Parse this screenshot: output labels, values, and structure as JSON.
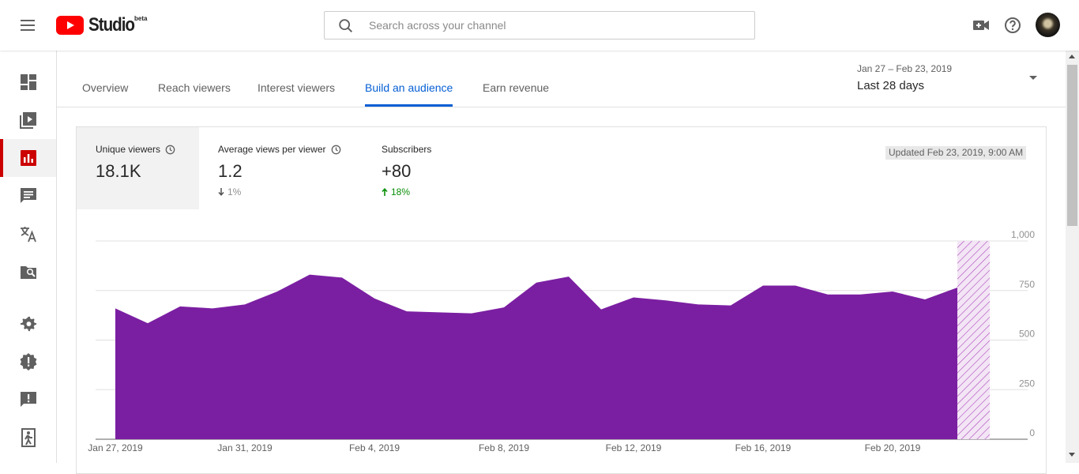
{
  "app": {
    "logo_text": "Studio",
    "beta_label": "beta",
    "brand_color": "#ff0000"
  },
  "search": {
    "placeholder": "Search across your channel",
    "value": ""
  },
  "header_icons": [
    "create-video-icon",
    "help-icon",
    "avatar"
  ],
  "sidebar": {
    "items": [
      {
        "name": "dashboard",
        "icon": "dashboard-icon"
      },
      {
        "name": "videos",
        "icon": "video-library-icon"
      },
      {
        "name": "analytics",
        "icon": "analytics-icon",
        "active": true
      },
      {
        "name": "comments",
        "icon": "comments-icon"
      },
      {
        "name": "translations",
        "icon": "translate-icon"
      },
      {
        "name": "copyright",
        "icon": "copyright-search-icon"
      },
      {
        "name": "settings",
        "icon": "gear-icon"
      },
      {
        "name": "what-is-new",
        "icon": "alert-badge-icon"
      },
      {
        "name": "feedback",
        "icon": "feedback-icon"
      },
      {
        "name": "creator-studio-classic",
        "icon": "exit-icon"
      }
    ]
  },
  "tabs": [
    {
      "label": "Overview"
    },
    {
      "label": "Reach viewers"
    },
    {
      "label": "Interest viewers"
    },
    {
      "label": "Build an audience",
      "active": true
    },
    {
      "label": "Earn revenue"
    }
  ],
  "date_range": {
    "range": "Jan 27 – Feb 23, 2019",
    "label": "Last 28 days"
  },
  "metrics": [
    {
      "label": "Unique viewers",
      "value": "18.1K",
      "change": "",
      "direction": "",
      "active": true,
      "has_clock": true
    },
    {
      "label": "Average views per viewer",
      "value": "1.2",
      "change": "1%",
      "direction": "down",
      "has_clock": true
    },
    {
      "label": "Subscribers",
      "value": "+80",
      "change": "18%",
      "direction": "up",
      "has_clock": false
    }
  ],
  "updated": "Updated Feb 23, 2019, 9:00 AM",
  "colors": {
    "area": "#7b1fa2",
    "active_tab": "#065fd4",
    "up": "#0a8f08",
    "down": "#909090",
    "sidebar_active": "#cc0000"
  },
  "chart_data": {
    "type": "area",
    "x": [
      "Jan 27, 2019",
      "Jan 28, 2019",
      "Jan 29, 2019",
      "Jan 30, 2019",
      "Jan 31, 2019",
      "Feb 1, 2019",
      "Feb 2, 2019",
      "Feb 3, 2019",
      "Feb 4, 2019",
      "Feb 5, 2019",
      "Feb 6, 2019",
      "Feb 7, 2019",
      "Feb 8, 2019",
      "Feb 9, 2019",
      "Feb 10, 2019",
      "Feb 11, 2019",
      "Feb 12, 2019",
      "Feb 13, 2019",
      "Feb 14, 2019",
      "Feb 15, 2019",
      "Feb 16, 2019",
      "Feb 17, 2019",
      "Feb 18, 2019",
      "Feb 19, 2019",
      "Feb 20, 2019",
      "Feb 21, 2019",
      "Feb 22, 2019",
      "Feb 23, 2019"
    ],
    "series": [
      {
        "values": [
          660,
          585,
          670,
          660,
          680,
          745,
          830,
          815,
          710,
          645,
          640,
          635,
          665,
          790,
          820,
          655,
          715,
          700,
          680,
          675,
          775,
          775,
          730,
          730,
          745,
          705,
          765,
          1000
        ]
      }
    ],
    "partial_last": true,
    "x_tick_labels": [
      "Jan 27, 2019",
      "Jan 31, 2019",
      "Feb 4, 2019",
      "Feb 8, 2019",
      "Feb 12, 2019",
      "Feb 16, 2019",
      "Feb 20, 2019"
    ],
    "y_ticks": [
      0,
      250,
      500,
      750,
      1000
    ],
    "y_tick_labels": [
      "0",
      "250",
      "500",
      "750",
      "1,000"
    ],
    "ylim": [
      0,
      1000
    ],
    "y_axis_side": "right",
    "grid": true
  }
}
